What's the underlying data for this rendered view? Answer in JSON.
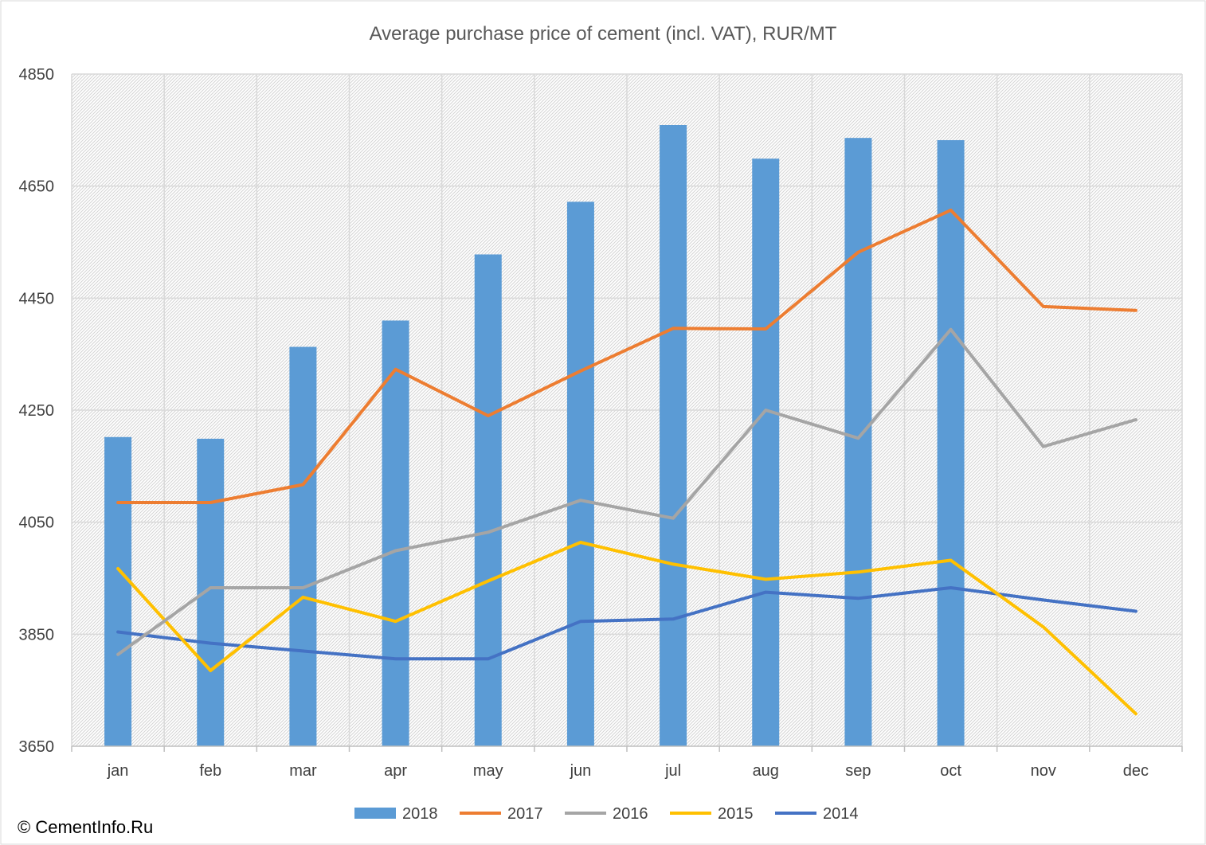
{
  "copyright": "© CementInfo.Ru",
  "chart_data": {
    "type": "bar+line",
    "title": "Average purchase price of cement (incl. VAT), RUR/MT",
    "xlabel": "",
    "ylabel": "",
    "categories": [
      "jan",
      "feb",
      "mar",
      "apr",
      "may",
      "jun",
      "jul",
      "aug",
      "sep",
      "oct",
      "nov",
      "dec"
    ],
    "ylim": [
      3650,
      4850
    ],
    "yticks": [
      3650,
      3850,
      4050,
      4250,
      4450,
      4650,
      4850
    ],
    "grid": true,
    "legend_position": "bottom",
    "series": [
      {
        "name": "2018",
        "type": "bar",
        "color": "#5B9BD5",
        "values": [
          4202,
          4199,
          4363,
          4410,
          4528,
          4622,
          4759,
          4699,
          4736,
          4732,
          null,
          null
        ]
      },
      {
        "name": "2017",
        "type": "line",
        "color": "#ED7D31",
        "values": [
          4085,
          4085,
          4117,
          4323,
          4240,
          4320,
          4396,
          4395,
          4532,
          4607,
          4435,
          4428
        ]
      },
      {
        "name": "2016",
        "type": "line",
        "color": "#A5A5A5",
        "values": [
          3814,
          3933,
          3933,
          3999,
          4032,
          4089,
          4057,
          4250,
          4200,
          4394,
          4185,
          4233
        ]
      },
      {
        "name": "2015",
        "type": "line",
        "color": "#FFC000",
        "values": [
          3967,
          3785,
          3916,
          3873,
          3945,
          4014,
          3975,
          3948,
          3961,
          3982,
          3863,
          3708
        ]
      },
      {
        "name": "2014",
        "type": "line",
        "color": "#4472C4",
        "values": [
          3854,
          3834,
          3820,
          3806,
          3806,
          3873,
          3877,
          3925,
          3914,
          3933,
          3911,
          3891
        ]
      }
    ]
  }
}
